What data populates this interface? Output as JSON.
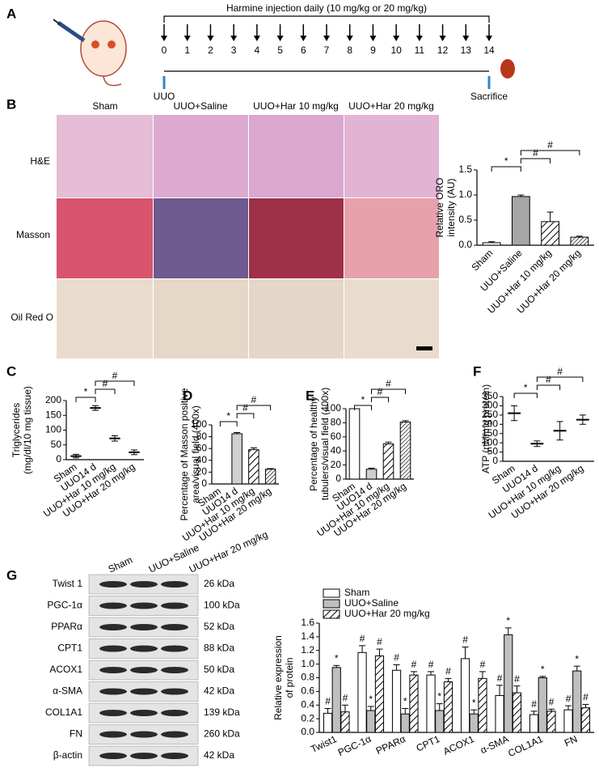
{
  "panels": {
    "A": {
      "label": "A",
      "title": "Harmine injection daily (10 mg/kg or 20 mg/kg)",
      "days": [
        "0",
        "1",
        "2",
        "3",
        "4",
        "5",
        "6",
        "7",
        "8",
        "9",
        "10",
        "11",
        "12",
        "13",
        "14"
      ],
      "start": "UUO",
      "end": "Sacrifice"
    },
    "B": {
      "label": "B",
      "columns": [
        "Sham",
        "UUO+Saline",
        "UUO+Har 10 mg/kg",
        "UUO+Har 20 mg/kg"
      ],
      "rows": [
        "H&E",
        "Masson",
        "Oil Red O"
      ]
    },
    "C": {
      "label": "C"
    },
    "D": {
      "label": "D"
    },
    "E": {
      "label": "E"
    },
    "F": {
      "label": "F"
    },
    "G": {
      "label": "G",
      "lanes": [
        "Sham",
        "UUO+Saline",
        "UUO+Har 20 mg/kg"
      ],
      "blots": [
        {
          "protein": "Twist 1",
          "size": "26 kDa"
        },
        {
          "protein": "PGC-1α",
          "size": "100 kDa"
        },
        {
          "protein": "PPARα",
          "size": "52 kDa"
        },
        {
          "protein": "CPT1",
          "size": "88 kDa"
        },
        {
          "protein": "ACOX1",
          "size": "50 kDa"
        },
        {
          "protein": "α-SMA",
          "size": "42 kDa"
        },
        {
          "protein": "COL1A1",
          "size": "139 kDa"
        },
        {
          "protein": "FN",
          "size": "260 kDa"
        },
        {
          "protein": "β-actin",
          "size": "42 kDa"
        }
      ]
    }
  },
  "chart_data": [
    {
      "type": "bar",
      "y_label": [
        "Relative ORO",
        "intensity (AU)"
      ],
      "categories": [
        "Sham",
        "UUO+Saline",
        "UUO+Har 10 mg/kg",
        "UUO+Har 20 mg/kg"
      ],
      "values": [
        0.05,
        0.97,
        0.47,
        0.16
      ],
      "errors": [
        0.02,
        0.03,
        0.19,
        0.02
      ],
      "colors": [
        "#ffffff",
        "#a6a6a6",
        "#ffffff",
        "#ffffff"
      ],
      "patterns": [
        "none",
        "none",
        "hatch",
        "hatch-dense"
      ],
      "annotations": [
        "*",
        "#",
        "#"
      ],
      "ylim": [
        0,
        1.5
      ],
      "yticks": [
        {
          "value": 0,
          "label": "0.0"
        },
        {
          "value": 0.5,
          "label": "0.5"
        },
        {
          "value": 1,
          "label": "1.0"
        },
        {
          "value": 1.5,
          "label": "1.5"
        }
      ]
    },
    {
      "type": "dot",
      "y_label": [
        "Triglycerides",
        "(mg/dl/10 mg tissue)"
      ],
      "categories": [
        "Sham",
        "UUO14 d",
        "UUO+Har 10 mg/kg",
        "UUO+Har 20 mg/kg"
      ],
      "values": [
        12,
        175,
        72,
        25
      ],
      "errors": [
        6,
        8,
        9,
        8
      ],
      "color": "#000000",
      "annotations": [
        "*",
        "#",
        "#"
      ],
      "ylim": [
        0,
        200
      ],
      "yticks": [
        0,
        50,
        100,
        150,
        200
      ]
    },
    {
      "type": "bar",
      "y_label": [
        "Percentage of Masson positive",
        "area/visual field (400x)"
      ],
      "categories": [
        "Sham",
        "UUO14 d",
        "UUO+Har 10 mg/kg",
        "UUO+Har 20 mg/kg"
      ],
      "values": [
        0,
        85,
        58,
        25
      ],
      "errors": [
        0,
        2,
        3,
        1
      ],
      "colors": [
        "#ffffff",
        "#d0d0d0",
        "#ffffff",
        "#ffffff"
      ],
      "patterns": [
        "none",
        "none",
        "hatch",
        "hatch-dense"
      ],
      "annotations": [
        "*",
        "#",
        "#"
      ],
      "ylim": [
        0,
        100
      ],
      "yticks": [
        0,
        20,
        40,
        60,
        80,
        100
      ]
    },
    {
      "type": "bar",
      "y_label": [
        "Percentage of healthy",
        "tubulers/visual field (400x)"
      ],
      "categories": [
        "Sham",
        "UUO14 d",
        "UUO+Har 10 mg/kg",
        "UUO+Har 20 mg/kg"
      ],
      "values": [
        100,
        14,
        50,
        81
      ],
      "errors": [
        0,
        1.5,
        2.5,
        2
      ],
      "colors": [
        "#ffffff",
        "#d0d0d0",
        "#ffffff",
        "#ffffff"
      ],
      "patterns": [
        "none",
        "none",
        "hatch",
        "hatch-dense"
      ],
      "annotations": [
        "*",
        "#",
        "#"
      ],
      "ylim": [
        0,
        100
      ],
      "yticks": [
        0,
        20,
        40,
        60,
        80,
        100
      ]
    },
    {
      "type": "dot",
      "y_label": [
        "ATP (nM/mg protein)"
      ],
      "categories": [
        "Sham",
        "UUO14 d",
        "UUO+Har 10 mg/kg",
        "UUO+Har 20 mg/kg"
      ],
      "values": [
        260,
        95,
        165,
        225
      ],
      "errors": [
        40,
        15,
        50,
        25
      ],
      "color": "#000000",
      "annotations": [
        "*",
        "#",
        "#"
      ],
      "ylim": [
        0,
        350
      ],
      "yticks": [
        0,
        50,
        100,
        150,
        200,
        250,
        300,
        350
      ]
    },
    {
      "type": "grouped-bar",
      "y_label": [
        "Relative expression",
        "of protein"
      ],
      "categories": [
        "Twist1",
        "PGC-1α",
        "PPARα",
        "CPT1",
        "ACOX1",
        "α-SMA",
        "COL1A1",
        "FN"
      ],
      "series": [
        {
          "name": "Sham",
          "color": "#ffffff",
          "pattern": "none",
          "marker": "#",
          "values": [
            0.28,
            1.17,
            0.91,
            0.84,
            1.08,
            0.54,
            0.26,
            0.33
          ],
          "errors": [
            0.07,
            0.1,
            0.08,
            0.05,
            0.17,
            0.15,
            0.05,
            0.06
          ]
        },
        {
          "name": "UUO+Saline",
          "color": "#bfbfbf",
          "pattern": "none",
          "marker": "*",
          "values": [
            0.95,
            0.32,
            0.27,
            0.32,
            0.27,
            1.43,
            0.8,
            0.9
          ],
          "errors": [
            0.03,
            0.06,
            0.08,
            0.1,
            0.06,
            0.1,
            0.02,
            0.07
          ]
        },
        {
          "name": "UUO+Har 20 mg/kg",
          "color": "#ffffff",
          "pattern": "hatch",
          "marker": "#",
          "values": [
            0.3,
            1.12,
            0.84,
            0.74,
            0.79,
            0.58,
            0.31,
            0.36
          ],
          "errors": [
            0.1,
            0.1,
            0.05,
            0.05,
            0.1,
            0.1,
            0.03,
            0.05
          ]
        }
      ],
      "ylim": [
        0,
        1.6
      ],
      "yticks": [
        {
          "value": 0,
          "label": "0.0"
        },
        {
          "value": 0.2,
          "label": "0.2"
        },
        {
          "value": 0.4,
          "label": "0.4"
        },
        {
          "value": 0.6,
          "label": "0.6"
        },
        {
          "value": 0.8,
          "label": "0.8"
        },
        {
          "value": 1,
          "label": "1.0"
        },
        {
          "value": 1.2,
          "label": "1.2"
        },
        {
          "value": 1.4,
          "label": "1.4"
        },
        {
          "value": 1.6,
          "label": "1.6"
        }
      ]
    }
  ]
}
